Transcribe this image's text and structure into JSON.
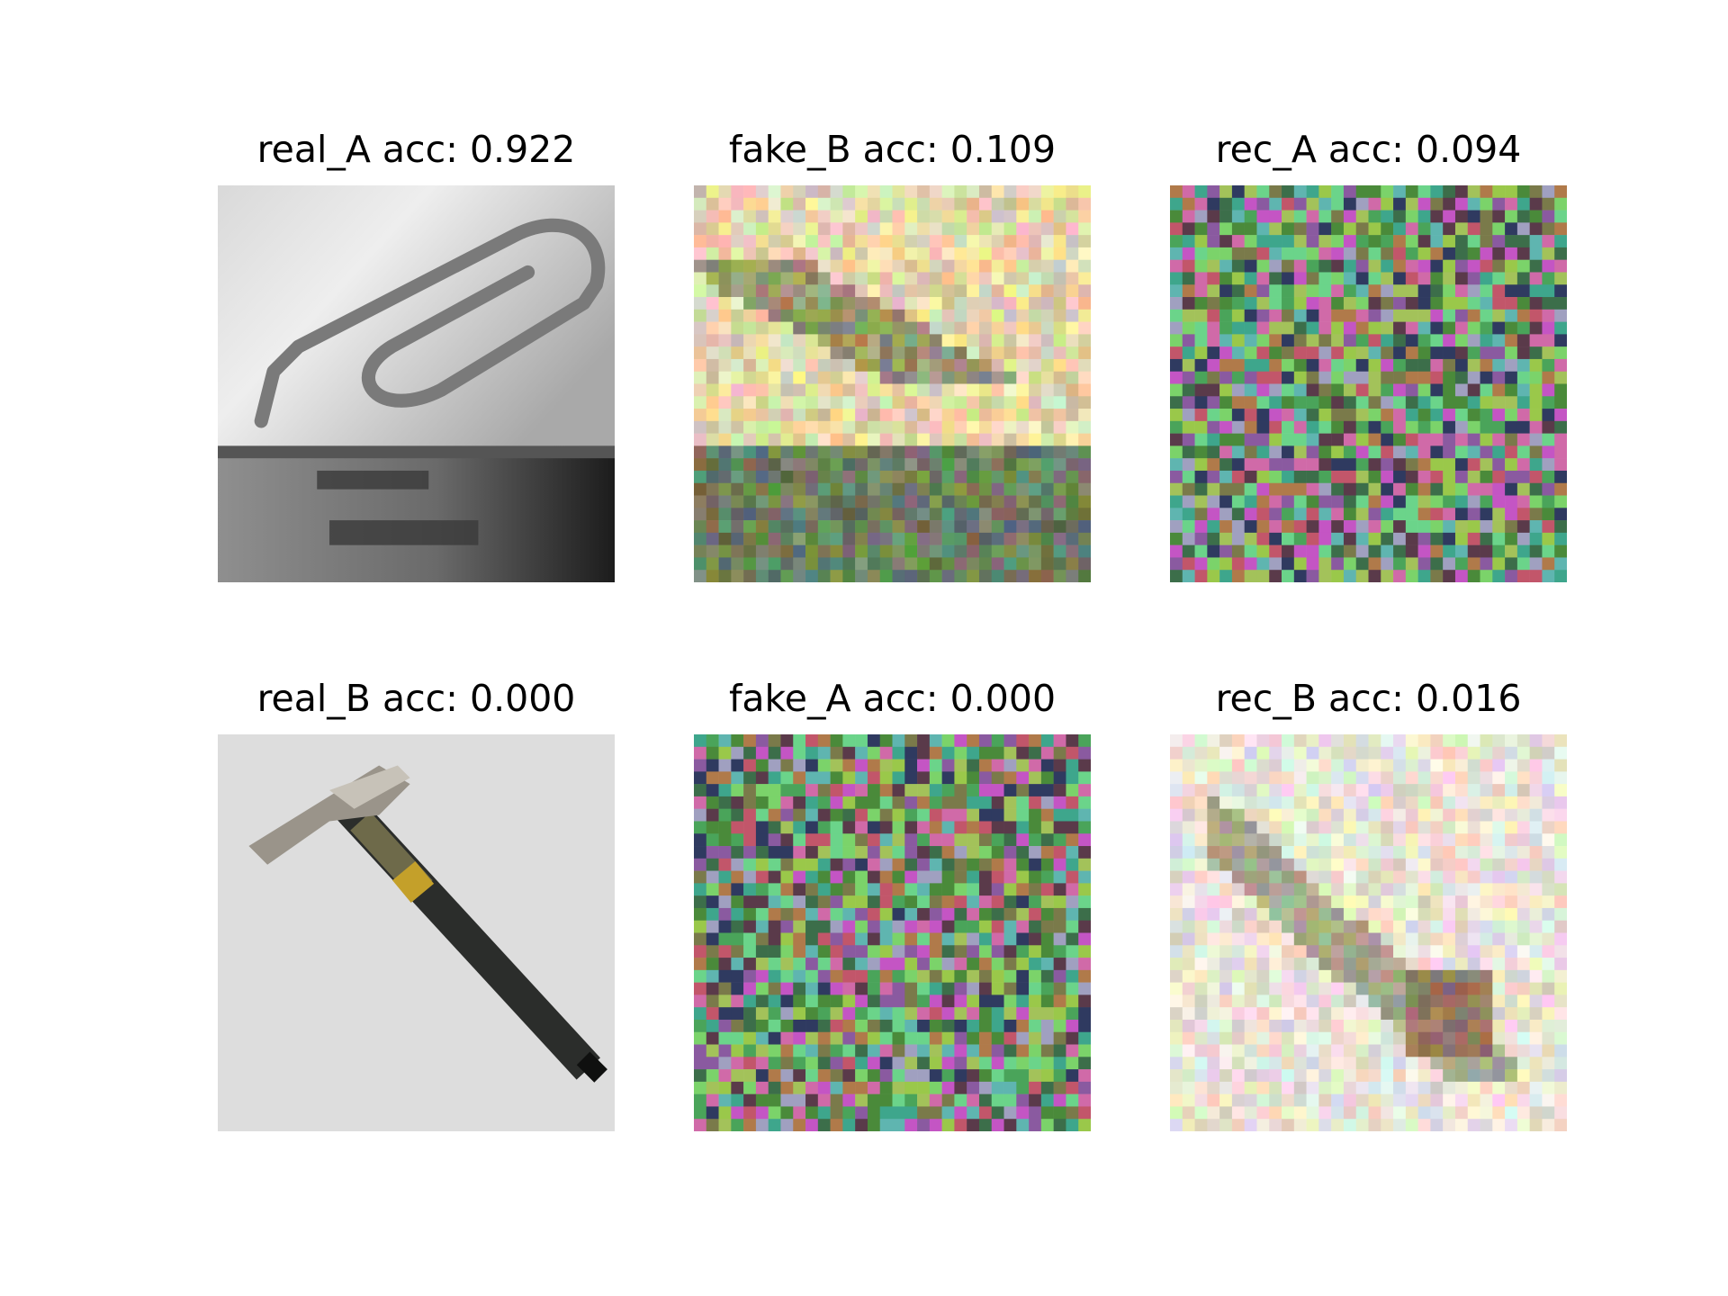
{
  "figure": {
    "panels": [
      {
        "id": "real_A",
        "title": "real_A acc: 0.922",
        "content": "grayscale-paperclip"
      },
      {
        "id": "fake_B",
        "title": "fake_B acc: 0.109",
        "content": "noisy-pastel-reconstruction"
      },
      {
        "id": "rec_A",
        "title": "rec_A acc: 0.094",
        "content": "noise-grid"
      },
      {
        "id": "real_B",
        "title": "real_B acc: 0.000",
        "content": "hammer"
      },
      {
        "id": "fake_A",
        "title": "fake_A acc: 0.000",
        "content": "noise-grid"
      },
      {
        "id": "rec_B",
        "title": "rec_B acc: 0.016",
        "content": "faded-pastel-reconstruction"
      }
    ]
  }
}
